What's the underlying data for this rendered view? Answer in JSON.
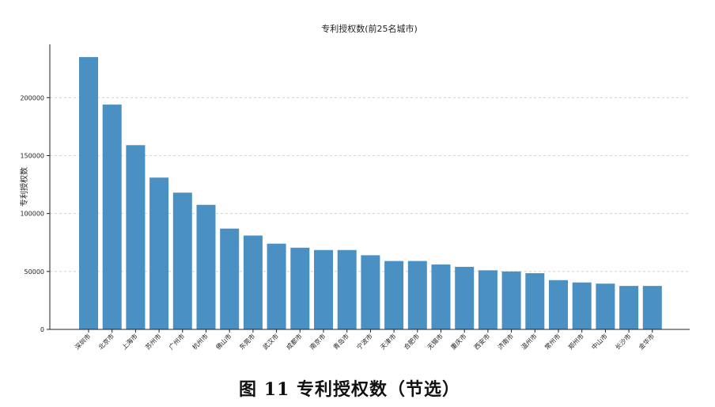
{
  "caption": "图 11 专利授权数（节选）",
  "chart_data": {
    "type": "bar",
    "title": "专利授权数(前25名城市)",
    "xlabel": "",
    "ylabel": "专利授权数",
    "ylim": [
      0,
      246000
    ],
    "yticks": [
      0,
      50000,
      100000,
      150000,
      200000
    ],
    "grid": "y-dashed",
    "bar_color": "#4a90c2",
    "categories": [
      "深圳市",
      "北京市",
      "上海市",
      "苏州市",
      "广州市",
      "杭州市",
      "佛山市",
      "东莞市",
      "武汉市",
      "成都市",
      "南京市",
      "青岛市",
      "宁波市",
      "天津市",
      "合肥市",
      "无锡市",
      "重庆市",
      "西安市",
      "济南市",
      "温州市",
      "常州市",
      "郑州市",
      "中山市",
      "长沙市",
      "金华市"
    ],
    "values": [
      235000,
      194000,
      159000,
      131000,
      118000,
      107500,
      87000,
      81000,
      74000,
      70500,
      68500,
      68500,
      64000,
      59000,
      59000,
      56000,
      54000,
      51000,
      50000,
      48500,
      42500,
      40500,
      39500,
      37500,
      37500
    ]
  }
}
